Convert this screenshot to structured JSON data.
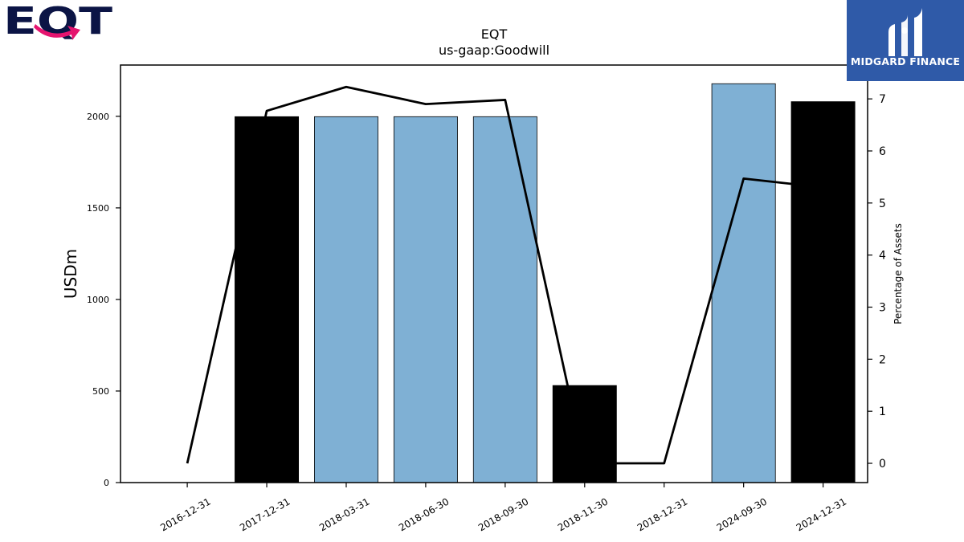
{
  "logos": {
    "company": "EQT",
    "company_logo_colors": {
      "text": "#0b1445",
      "arrow": "#e5146f"
    },
    "publisher": "MIDGARD FINANCE",
    "publisher_bg": "#2f5aa8"
  },
  "chart_data": {
    "type": "bar",
    "title": "EQT",
    "subtitle": "us-gaap:Goodwill",
    "ylabel": "USDm",
    "y2label": "Percentage of Assets",
    "categories": [
      "2016-12-31",
      "2017-12-31",
      "2018-03-31",
      "2018-06-30",
      "2018-09-30",
      "2018-11-30",
      "2018-12-31",
      "2024-09-30",
      "2024-12-31"
    ],
    "ylim": [
      0,
      2280
    ],
    "yticks": [
      0,
      500,
      1000,
      1500,
      2000
    ],
    "y2lim": [
      -0.37,
      7.65
    ],
    "y2ticks": [
      0,
      1,
      2,
      3,
      4,
      5,
      6,
      7
    ],
    "series": [
      {
        "kind": "bar",
        "values": [
          0,
          1998,
          1998,
          1998,
          1998,
          530,
          0,
          2178,
          2080
        ],
        "colors": [
          "#7fb0d4",
          "#000000",
          "#7fb0d4",
          "#7fb0d4",
          "#7fb0d4",
          "#000000",
          "#7fb0d4",
          "#7fb0d4",
          "#000000"
        ]
      },
      {
        "kind": "line",
        "axis": "right",
        "color": "#000000",
        "values": [
          0,
          6.77,
          7.23,
          6.9,
          6.98,
          0,
          0,
          5.47,
          5.3
        ]
      }
    ],
    "grid": false,
    "legend": "none"
  }
}
